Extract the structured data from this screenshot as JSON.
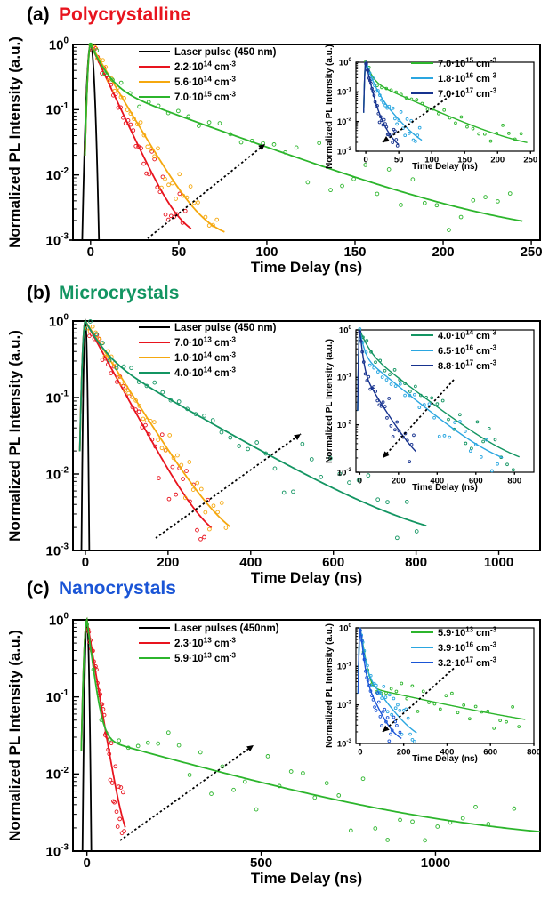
{
  "figure": {
    "colors": {
      "laser": "#000000",
      "red": "#e8141e",
      "orange": "#f5a80f",
      "green": "#2cb52c",
      "teal": "#139562",
      "lightblue": "#2aa6e0",
      "navy": "#17338f",
      "blue": "#1a55d6"
    }
  },
  "panels": [
    {
      "label": "(a)",
      "name": "Polycrystalline",
      "name_color": "#e8141e",
      "xlabel": "Time Delay (ns)",
      "ylabel": "Normalized PL Intensity (a.u.)",
      "xticks": [
        "0",
        "50",
        "100",
        "150",
        "200",
        "250"
      ],
      "legend": [
        {
          "label": "Laser pulse (450 nm)",
          "color": "#000000"
        },
        {
          "label": "2.2·10",
          "sup": "14",
          "unit": " cm",
          "exp": "-3",
          "color": "#e8141e"
        },
        {
          "label": "5.6·10",
          "sup": "14",
          "unit": " cm",
          "exp": "-3",
          "color": "#f5a80f"
        },
        {
          "label": "7.0·10",
          "sup": "15",
          "unit": " cm",
          "exp": "-3",
          "color": "#2cb52c"
        }
      ],
      "inset": {
        "xlabel": "Time Delay (ns)",
        "ylabel": "Normalized PL Intensity (a.u.)",
        "xticks": [
          "0",
          "50",
          "100",
          "150",
          "200",
          "250"
        ],
        "legend": [
          {
            "label": "7.0·10",
            "sup": "15",
            "unit": " cm",
            "exp": "-3",
            "color": "#2cb52c"
          },
          {
            "label": "1.8·10",
            "sup": "16",
            "unit": " cm",
            "exp": "-3",
            "color": "#2aa6e0"
          },
          {
            "label": "7.0·10",
            "sup": "17",
            "unit": " cm",
            "exp": "-3",
            "color": "#17338f"
          }
        ]
      }
    },
    {
      "label": "(b)",
      "name": "Microcrystals",
      "name_color": "#139562",
      "xlabel": "Time Delay (ns)",
      "ylabel": "Normalized PL Intensity (a.u.)",
      "xticks": [
        "0",
        "200",
        "400",
        "600",
        "800",
        "1000"
      ],
      "legend": [
        {
          "label": "Laser pulse (450 nm)",
          "color": "#000000"
        },
        {
          "label": "7.0·10",
          "sup": "13",
          "unit": " cm",
          "exp": "-3",
          "color": "#e8141e"
        },
        {
          "label": "1.0·10",
          "sup": "14",
          "unit": " cm",
          "exp": "-3",
          "color": "#f5a80f"
        },
        {
          "label": "4.0·10",
          "sup": "14",
          "unit": " cm",
          "exp": "-3",
          "color": "#139562"
        }
      ],
      "inset": {
        "xlabel": "Time Delay (ns)",
        "ylabel": "Normalized PL Intensity (a.u.)",
        "xticks": [
          "0",
          "200",
          "400",
          "600",
          "800"
        ],
        "legend": [
          {
            "label": "4.0·10",
            "sup": "14",
            "unit": " cm",
            "exp": "-3",
            "color": "#139562"
          },
          {
            "label": "6.5·10",
            "sup": "16",
            "unit": " cm",
            "exp": "-3",
            "color": "#2aa6e0"
          },
          {
            "label": "8.8·10",
            "sup": "17",
            "unit": " cm",
            "exp": "-3",
            "color": "#17338f"
          }
        ]
      }
    },
    {
      "label": "(c)",
      "name": "Nanocrystals",
      "name_color": "#1a55d6",
      "xlabel": "Time Delay (ns)",
      "ylabel": "Normalized PL Intensity (a.u.)",
      "xticks": [
        "0",
        "500",
        "1000"
      ],
      "legend": [
        {
          "label": "Laser pulses (450nm)",
          "color": "#000000"
        },
        {
          "label": "2.3·10",
          "sup": "13",
          "unit": " cm",
          "exp": "-3",
          "color": "#e8141e"
        },
        {
          "label": "5.9·10",
          "sup": "13",
          "unit": " cm",
          "exp": "-3",
          "color": "#2cb52c"
        }
      ],
      "inset": {
        "xlabel": "Time Delay (ns)",
        "ylabel": "Normalized PL Intensity (a.u.)",
        "xticks": [
          "0",
          "200",
          "400",
          "600",
          "800"
        ],
        "legend": [
          {
            "label": "5.9·10",
            "sup": "13",
            "unit": " cm",
            "exp": "-3",
            "color": "#2cb52c"
          },
          {
            "label": "3.9·10",
            "sup": "16",
            "unit": " cm",
            "exp": "-3",
            "color": "#2aa6e0"
          },
          {
            "label": "3.2·10",
            "sup": "17",
            "unit": " cm",
            "exp": "-3",
            "color": "#1a55d6"
          }
        ]
      }
    }
  ],
  "chart_data": [
    {
      "type": "scatter",
      "panel": "(a)",
      "title": "Polycrystalline",
      "xlabel": "Time Delay (ns)",
      "ylabel": "Normalized PL Intensity (a.u.)",
      "xlim": [
        -10,
        255
      ],
      "ylim": [
        0.001,
        1
      ],
      "yscale": "log",
      "xticks": [
        0,
        50,
        100,
        150,
        200,
        250
      ],
      "yticks": [
        0.001,
        0.01,
        0.1,
        1
      ],
      "series": [
        {
          "name": "Laser pulse (450 nm)",
          "kind": "pulse",
          "peak": 0,
          "fwhm": 3,
          "color": "#000000"
        },
        {
          "name": "2.2·10^14 cm^-3",
          "kind": "fit",
          "t_start": 0,
          "t_end": 57,
          "fast_tau": 7.5,
          "fast_amp": 1,
          "slow_tau": 0,
          "slow_amp": 0,
          "floor": 0.001,
          "color": "#e8141e"
        },
        {
          "name": "5.6·10^14 cm^-3",
          "kind": "fit",
          "t_start": 0,
          "t_end": 76,
          "fast_tau": 9.5,
          "fast_amp": 1,
          "slow_tau": 0,
          "slow_amp": 0,
          "floor": 0.001,
          "color": "#f5a80f"
        },
        {
          "name": "7.0·10^15 cm^-3",
          "kind": "fit",
          "t_start": 0,
          "t_end": 245,
          "fast_tau": 6,
          "fast_amp": 0.75,
          "slow_tau": 44,
          "slow_amp": 0.25,
          "floor": 0.001,
          "color": "#2cb52c"
        }
      ],
      "inset": {
        "xlim": [
          -15,
          255
        ],
        "ylim": [
          0.001,
          1
        ],
        "yscale": "log",
        "xticks": [
          0,
          50,
          100,
          150,
          200,
          250
        ],
        "yticks": [
          0.001,
          0.01,
          0.1,
          1
        ],
        "series": [
          {
            "name": "7.0·10^15 cm^-3",
            "kind": "fit",
            "t_start": 0,
            "t_end": 245,
            "fast_tau": 6,
            "fast_amp": 0.75,
            "slow_tau": 44,
            "slow_amp": 0.25,
            "floor": 0.001,
            "color": "#2cb52c"
          },
          {
            "name": "1.8·10^16 cm^-3",
            "kind": "fit",
            "t_start": 0,
            "t_end": 85,
            "fast_tau": 6,
            "fast_amp": 0.8,
            "slow_tau": 17,
            "slow_amp": 0.2,
            "floor": 0.001,
            "color": "#2aa6e0"
          },
          {
            "name": "7.0·10^17 cm^-3",
            "kind": "fit",
            "t_start": 0,
            "t_end": 50,
            "fast_tau": 4,
            "fast_amp": 0.9,
            "slow_tau": 10,
            "slow_amp": 0.1,
            "floor": 0.001,
            "color": "#17338f"
          }
        ]
      }
    },
    {
      "type": "scatter",
      "panel": "(b)",
      "title": "Microcrystals",
      "xlabel": "Time Delay (ns)",
      "ylabel": "Normalized PL Intensity (a.u.)",
      "xlim": [
        -30,
        1100
      ],
      "ylim": [
        0.001,
        1
      ],
      "yscale": "log",
      "xticks": [
        0,
        200,
        400,
        600,
        800,
        1000
      ],
      "yticks": [
        0.001,
        0.01,
        0.1,
        1
      ],
      "series": [
        {
          "name": "Laser pulse (450 nm)",
          "kind": "pulse",
          "peak": 0,
          "fwhm": 6,
          "color": "#000000"
        },
        {
          "name": "7.0·10^13 cm^-3",
          "kind": "fit",
          "t_start": 0,
          "t_end": 305,
          "fast_tau": 0,
          "fast_amp": 0,
          "slow_tau": 44,
          "slow_amp": 1,
          "floor": 0.001,
          "color": "#e8141e"
        },
        {
          "name": "1.0·10^14 cm^-3",
          "kind": "fit",
          "t_start": 0,
          "t_end": 350,
          "fast_tau": 0,
          "fast_amp": 0,
          "slow_tau": 51,
          "slow_amp": 1,
          "floor": 0.001,
          "color": "#f5a80f"
        },
        {
          "name": "4.0·10^14 cm^-3",
          "kind": "fit",
          "t_start": 0,
          "t_end": 825,
          "fast_tau": 30,
          "fast_amp": 0.6,
          "slow_tau": 140,
          "slow_amp": 0.4,
          "floor": 0.001,
          "color": "#139562"
        }
      ],
      "inset": {
        "xlim": [
          -20,
          900
        ],
        "ylim": [
          0.001,
          1
        ],
        "yscale": "log",
        "xticks": [
          0,
          200,
          400,
          600,
          800
        ],
        "yticks": [
          0.001,
          0.01,
          0.1,
          1
        ],
        "series": [
          {
            "name": "4.0·10^14 cm^-3",
            "kind": "fit",
            "t_start": 0,
            "t_end": 825,
            "fast_tau": 30,
            "fast_amp": 0.6,
            "slow_tau": 140,
            "slow_amp": 0.4,
            "floor": 0.001,
            "color": "#139562"
          },
          {
            "name": "6.5·10^16 cm^-3",
            "kind": "fit",
            "t_start": 0,
            "t_end": 740,
            "fast_tau": 15,
            "fast_amp": 0.7,
            "slow_tau": 130,
            "slow_amp": 0.3,
            "floor": 0.001,
            "color": "#2aa6e0"
          },
          {
            "name": "8.8·10^17 cm^-3",
            "kind": "fit",
            "t_start": 0,
            "t_end": 290,
            "fast_tau": 10,
            "fast_amp": 0.85,
            "slow_tau": 65,
            "slow_amp": 0.15,
            "floor": 0.001,
            "color": "#17338f"
          }
        ]
      }
    },
    {
      "type": "scatter",
      "panel": "(c)",
      "title": "Nanocrystals",
      "xlabel": "Time Delay (ns)",
      "ylabel": "Normalized PL Intensity (a.u.)",
      "xlim": [
        -40,
        1300
      ],
      "ylim": [
        0.001,
        1
      ],
      "yscale": "log",
      "xticks": [
        0,
        500,
        1000
      ],
      "yticks": [
        0.001,
        0.01,
        0.1,
        1
      ],
      "series": [
        {
          "name": "Laser pulses (450nm)",
          "kind": "pulse",
          "peak": 0,
          "fwhm": 8,
          "color": "#000000"
        },
        {
          "name": "2.3·10^13 cm^-3",
          "kind": "fit",
          "t_start": 0,
          "t_end": 110,
          "fast_tau": 0,
          "fast_amp": 0,
          "slow_tau": 16,
          "slow_amp": 1,
          "floor": 0.001,
          "color": "#e8141e"
        },
        {
          "name": "5.9·10^13 cm^-3",
          "kind": "fit",
          "t_start": 0,
          "t_end": 1300,
          "fast_tau": 12,
          "fast_amp": 0.97,
          "slow_tau": 330,
          "slow_amp": 0.03,
          "floor": 0.0012,
          "color": "#2cb52c"
        }
      ],
      "inset": {
        "xlim": [
          -20,
          800
        ],
        "ylim": [
          0.001,
          1
        ],
        "yscale": "log",
        "xticks": [
          0,
          200,
          400,
          600,
          800
        ],
        "yticks": [
          0.001,
          0.01,
          0.1,
          1
        ],
        "series": [
          {
            "name": "5.9·10^13 cm^-3",
            "kind": "fit",
            "t_start": 0,
            "t_end": 760,
            "fast_tau": 12,
            "fast_amp": 0.97,
            "slow_tau": 330,
            "slow_amp": 0.03,
            "floor": 0.0012,
            "color": "#2cb52c"
          },
          {
            "name": "3.9·10^16 cm^-3",
            "kind": "fit",
            "t_start": 0,
            "t_end": 260,
            "fast_tau": 10,
            "fast_amp": 0.9,
            "slow_tau": 55,
            "slow_amp": 0.1,
            "floor": 0.001,
            "color": "#2aa6e0"
          },
          {
            "name": "3.2·10^17 cm^-3",
            "kind": "fit",
            "t_start": 0,
            "t_end": 190,
            "fast_tau": 8,
            "fast_amp": 0.92,
            "slow_tau": 35,
            "slow_amp": 0.08,
            "floor": 0.001,
            "color": "#1a55d6"
          }
        ]
      }
    }
  ]
}
